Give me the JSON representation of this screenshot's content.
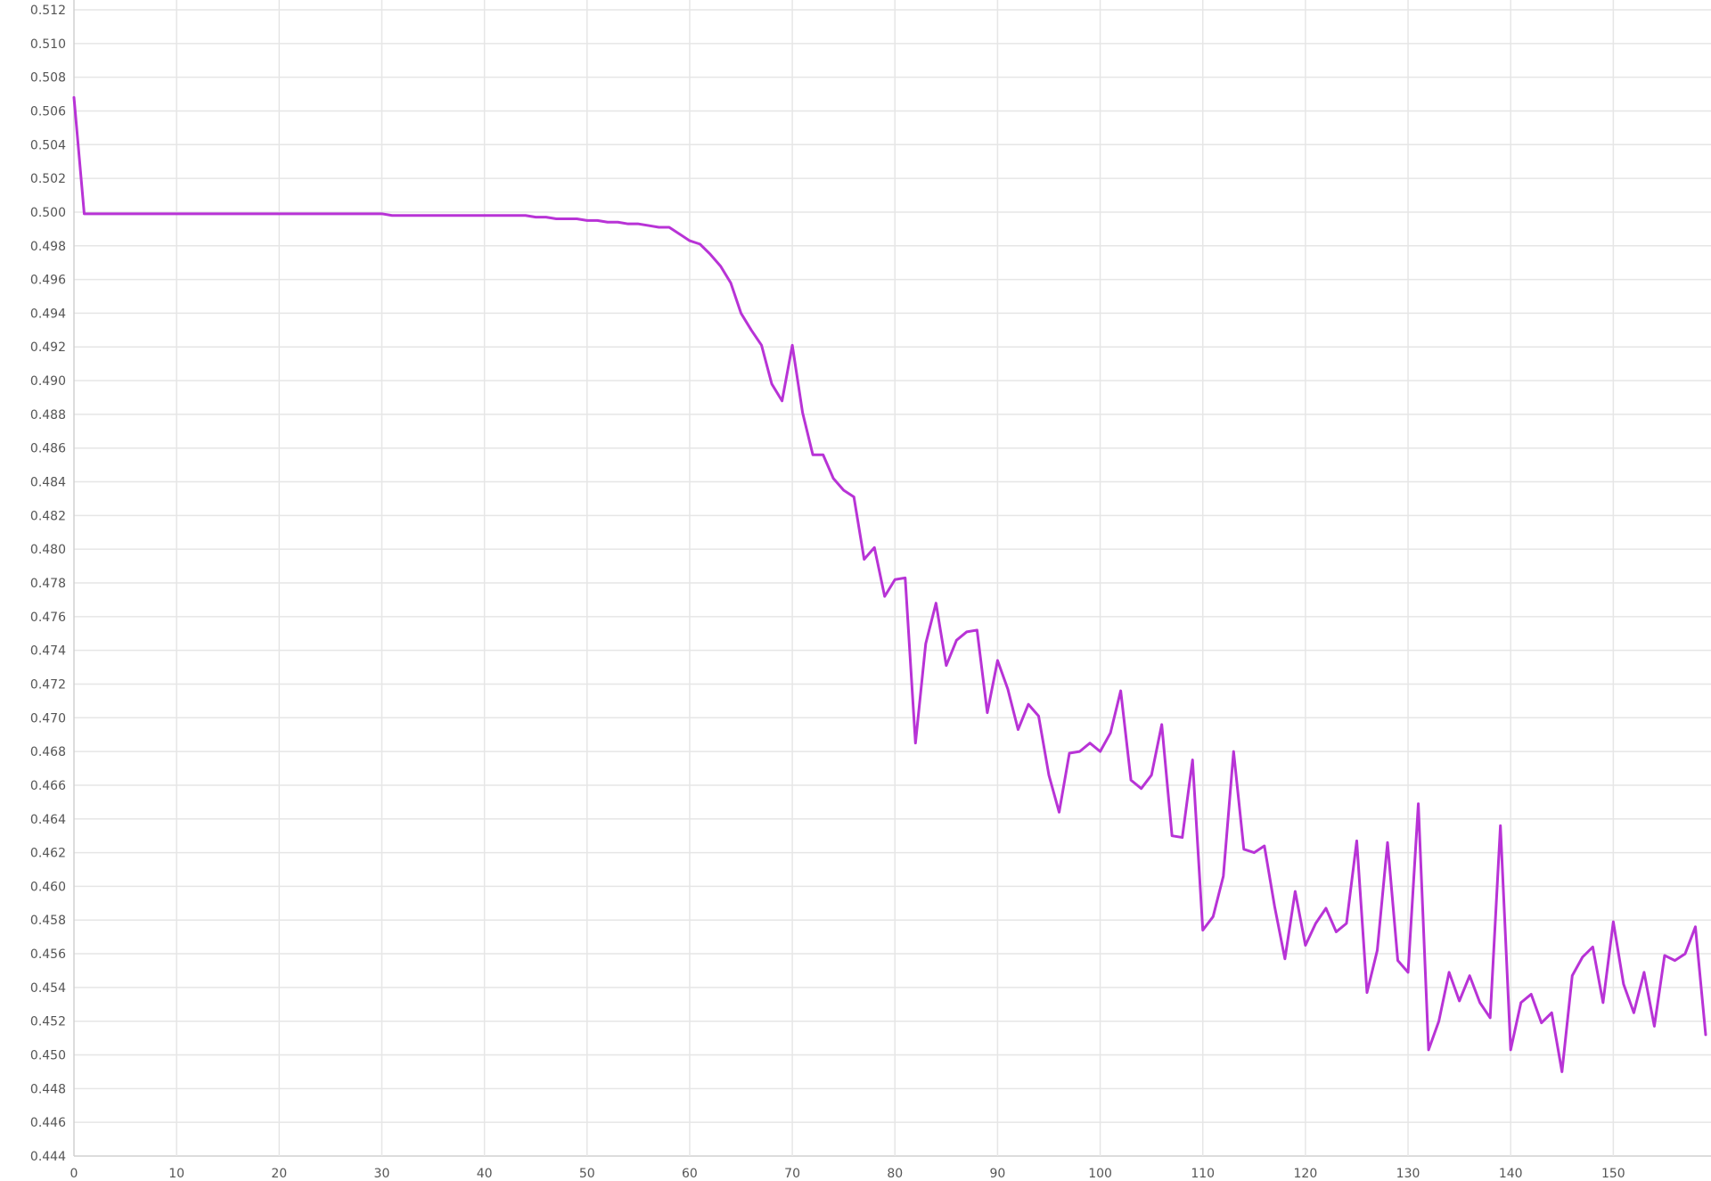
{
  "chart_data": {
    "type": "line",
    "title": "",
    "xlabel": "",
    "ylabel": "",
    "xlim": [
      0,
      159
    ],
    "ylim": [
      0.444,
      0.512
    ],
    "x_ticks": [
      "0",
      "10",
      "20",
      "30",
      "40",
      "50",
      "60",
      "70",
      "80",
      "90",
      "100",
      "110",
      "120",
      "130",
      "140",
      "150"
    ],
    "y_ticks": [
      "0.444",
      "0.446",
      "0.448",
      "0.450",
      "0.452",
      "0.454",
      "0.456",
      "0.458",
      "0.460",
      "0.462",
      "0.464",
      "0.466",
      "0.468",
      "0.470",
      "0.472",
      "0.474",
      "0.476",
      "0.478",
      "0.480",
      "0.482",
      "0.484",
      "0.486",
      "0.488",
      "0.490",
      "0.492",
      "0.494",
      "0.496",
      "0.498",
      "0.500",
      "0.502",
      "0.504",
      "0.506",
      "0.508",
      "0.510",
      "0.512"
    ],
    "grid": true,
    "legend": "none",
    "series": [
      {
        "color": "#b833d6",
        "x": [
          0,
          1,
          2,
          3,
          4,
          5,
          6,
          7,
          8,
          9,
          10,
          11,
          12,
          13,
          14,
          15,
          16,
          17,
          18,
          19,
          20,
          21,
          22,
          23,
          24,
          25,
          26,
          27,
          28,
          29,
          30,
          31,
          32,
          33,
          34,
          35,
          36,
          37,
          38,
          39,
          40,
          41,
          42,
          43,
          44,
          45,
          46,
          47,
          48,
          49,
          50,
          51,
          52,
          53,
          54,
          55,
          56,
          57,
          58,
          59,
          60,
          61,
          62,
          63,
          64,
          65,
          66,
          67,
          68,
          69,
          70,
          71,
          72,
          73,
          74,
          75,
          76,
          77,
          78,
          79,
          80,
          81,
          82,
          83,
          84,
          85,
          86,
          87,
          88,
          89,
          90,
          91,
          92,
          93,
          94,
          95,
          96,
          97,
          98,
          99,
          100,
          101,
          102,
          103,
          104,
          105,
          106,
          107,
          108,
          109,
          110,
          111,
          112,
          113,
          114,
          115,
          116,
          117,
          118,
          119,
          120,
          121,
          122,
          123,
          124,
          125,
          126,
          127,
          128,
          129,
          130,
          131,
          132,
          133,
          134,
          135,
          136,
          137,
          138,
          139,
          140,
          141,
          142,
          143,
          144,
          145,
          146,
          147,
          148,
          149,
          150,
          151,
          152,
          153,
          154,
          155,
          156,
          157,
          158,
          159
        ],
        "values": [
          0.5068,
          0.4999,
          0.4999,
          0.4999,
          0.4999,
          0.4999,
          0.4999,
          0.4999,
          0.4999,
          0.4999,
          0.4999,
          0.4999,
          0.4999,
          0.4999,
          0.4999,
          0.4999,
          0.4999,
          0.4999,
          0.4999,
          0.4999,
          0.4999,
          0.4999,
          0.4999,
          0.4999,
          0.4999,
          0.4999,
          0.4999,
          0.4999,
          0.4999,
          0.4999,
          0.4999,
          0.4998,
          0.4998,
          0.4998,
          0.4998,
          0.4998,
          0.4998,
          0.4998,
          0.4998,
          0.4998,
          0.4998,
          0.4998,
          0.4998,
          0.4998,
          0.4998,
          0.4997,
          0.4997,
          0.4996,
          0.4996,
          0.4996,
          0.4995,
          0.4995,
          0.4994,
          0.4994,
          0.4993,
          0.4993,
          0.4992,
          0.4991,
          0.4991,
          0.4987,
          0.4983,
          0.4981,
          0.4975,
          0.4968,
          0.4958,
          0.494,
          0.493,
          0.4921,
          0.4898,
          0.4888,
          0.4921,
          0.4881,
          0.4856,
          0.4856,
          0.4842,
          0.4835,
          0.4831,
          0.4794,
          0.4801,
          0.4772,
          0.4782,
          0.4783,
          0.4685,
          0.4744,
          0.4768,
          0.4731,
          0.4746,
          0.4751,
          0.4752,
          0.4703,
          0.4734,
          0.4717,
          0.4693,
          0.4708,
          0.4701,
          0.4666,
          0.4644,
          0.4679,
          0.468,
          0.4685,
          0.468,
          0.4691,
          0.4716,
          0.4663,
          0.4658,
          0.4666,
          0.4696,
          0.463,
          0.4629,
          0.4675,
          0.4574,
          0.4582,
          0.4606,
          0.468,
          0.4622,
          0.462,
          0.4624,
          0.4588,
          0.4557,
          0.4597,
          0.4565,
          0.4578,
          0.4587,
          0.4573,
          0.4578,
          0.4627,
          0.4537,
          0.4562,
          0.4626,
          0.4556,
          0.4549,
          0.4649,
          0.4503,
          0.452,
          0.4549,
          0.4532,
          0.4547,
          0.4531,
          0.4522,
          0.4636,
          0.4503,
          0.4531,
          0.4536,
          0.4519,
          0.4525,
          0.449,
          0.4547,
          0.4558,
          0.4564,
          0.4531,
          0.4579,
          0.4542,
          0.4525,
          0.4549,
          0.4517,
          0.4559,
          0.4556,
          0.456,
          0.4576,
          0.4512
        ]
      }
    ]
  }
}
